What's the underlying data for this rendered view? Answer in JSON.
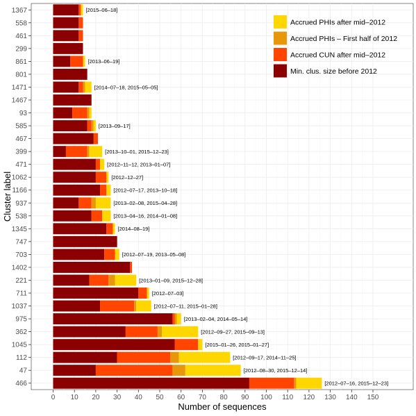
{
  "chart_data": {
    "type": "bar",
    "orientation": "horizontal",
    "stacked": true,
    "xlabel": "Number of sequences",
    "ylabel": "Cluster label",
    "xlim": [
      0,
      155
    ],
    "xticks": [
      0,
      10,
      20,
      30,
      40,
      50,
      60,
      70,
      80,
      90,
      100,
      110,
      120,
      130,
      140,
      150
    ],
    "grid": true,
    "legend_position": "top-right",
    "categories": [
      "1367",
      "558",
      "461",
      "299",
      "861",
      "801",
      "1471",
      "1467",
      "93",
      "585",
      "467",
      "399",
      "471",
      "1062",
      "1166",
      "937",
      "538",
      "1345",
      "747",
      "703",
      "1402",
      "221",
      "711",
      "1037",
      "975",
      "362",
      "1045",
      "112",
      "47",
      "466"
    ],
    "series": [
      {
        "name": "Min. clus. size before 2012",
        "color": "#8B0000",
        "values": [
          12,
          12,
          12,
          14,
          8,
          16,
          12,
          18,
          9,
          16,
          19,
          6,
          20,
          20,
          22,
          12,
          18,
          25,
          30,
          24,
          36,
          17,
          40,
          22,
          56,
          34,
          57,
          30,
          20,
          92
        ]
      },
      {
        "name": "Accrued CUN after mid–2012",
        "color": "#FF4500",
        "values": [
          1,
          2,
          2,
          0,
          6,
          0,
          2,
          0,
          7,
          2,
          2,
          10,
          2,
          5,
          3,
          6,
          5,
          3,
          0,
          5,
          1,
          9,
          4,
          16,
          1,
          15,
          11,
          25,
          36,
          21
        ]
      },
      {
        "name": "Accrued PHIs – First half of 2012",
        "color": "#E8960A",
        "values": [
          0,
          0,
          0,
          0,
          0,
          0,
          1,
          0,
          1,
          1,
          0,
          1,
          0,
          0,
          0,
          2,
          0,
          0,
          0,
          0,
          0,
          3,
          0,
          1,
          1,
          2,
          0,
          4,
          6,
          1
        ]
      },
      {
        "name": "Accrued PHIs after mid–2012",
        "color": "#FFD700",
        "values": [
          1,
          0,
          0,
          0,
          1,
          0,
          3,
          0,
          1,
          1,
          0,
          6,
          2,
          1,
          2,
          7,
          4,
          1,
          0,
          2,
          0,
          10,
          1,
          7,
          2,
          17,
          2,
          24,
          26,
          12
        ]
      }
    ],
    "annotations": [
      "[2015–06–18]",
      "",
      "",
      "",
      "[2013–06–19]",
      "",
      "[2014–07–18, 2015–05–05]",
      "",
      "",
      "[2013–09–17]",
      "",
      "[2013–10–01, 2015–12–23]",
      "[2012–11–12, 2013–01–07]",
      "[2012–12–27]",
      "[2012–07–17, 2013–10–18]",
      "[2013–02–08, 2015–04–28]",
      "[2013–04–16, 2014–01–08]",
      "[2014–08–19]",
      "",
      "[2012–07–19, 2013–05–08]",
      "",
      "[2013–01–09, 2015–12–28]",
      "[2012–07–03]",
      "[2012–07–11, 2015–01–28]",
      "[2013–02–04, 2014–05–14]",
      "[2012–09–27, 2015–09–13]",
      "[2015–01–26, 2015–01–27]",
      "[2012–09–17, 2014–11–25]",
      "[2012–08–30, 2015–12–14]",
      "[2012–07–16, 2015–12–23]"
    ],
    "legend_order": [
      3,
      2,
      1,
      0
    ]
  }
}
